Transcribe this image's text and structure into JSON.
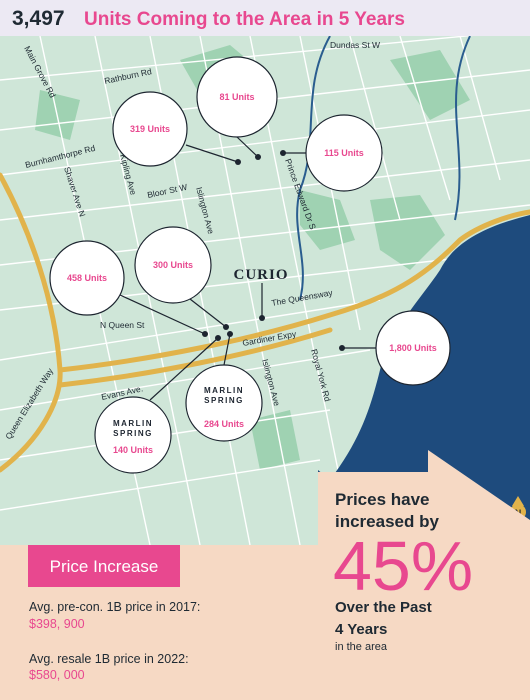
{
  "header": {
    "number": "3,497",
    "title": "Units Coming to the Area in 5 Years"
  },
  "streets": [
    "Dundas St W",
    "Main Grove Rd",
    "Rathburn Rd",
    "Burnhamthorpe Rd",
    "Shaver Ave N",
    "Kipling Ave",
    "Bloor St W",
    "Islington Ave",
    "Prince Edward Dr S",
    "The Queensway",
    "N Queen St",
    "Gardiner Expy",
    "Evans Ave.",
    "Islington Ave",
    "Royal York Rd",
    "Queen Elizabeth Way"
  ],
  "developments": [
    "81 Units",
    "319 Units",
    "115 Units",
    "458 Units",
    "300 Units",
    "1,800 Units",
    "140 Units",
    "284 Units"
  ],
  "brands": {
    "curio": "CURIO",
    "marlin_top": "MARLIN",
    "marlin_bottom": "SPRING"
  },
  "compass": "N",
  "price_panel": {
    "badge": "Price Increase",
    "items": [
      {
        "label": "Avg. pre-con. 1B price in 2017:",
        "value": "$398, 900"
      },
      {
        "label": "Avg. resale 1B price in 2022:",
        "value": "$580, 000"
      }
    ]
  },
  "callout": {
    "lead_1": "Prices have",
    "lead_2": "increased by",
    "percent": "45%",
    "line_1": "Over the Past",
    "line_2": "4 Years",
    "note": "in the area"
  }
}
